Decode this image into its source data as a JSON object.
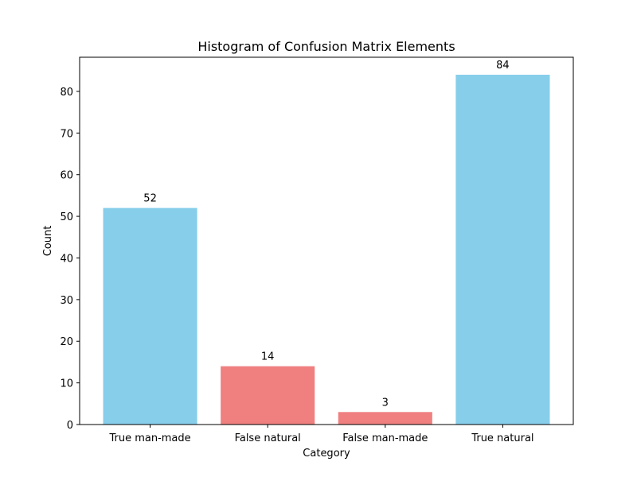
{
  "chart_data": {
    "type": "bar",
    "title": "Histogram of Confusion Matrix Elements",
    "xlabel": "Category",
    "ylabel": "Count",
    "categories": [
      "True man-made",
      "False natural",
      "False man-made",
      "True natural"
    ],
    "values": [
      52,
      14,
      3,
      84
    ],
    "data_labels": [
      "52",
      "14",
      "3",
      "84"
    ],
    "bar_colors": [
      "#87ceeb",
      "#f08080",
      "#f08080",
      "#87ceeb"
    ],
    "ylim": [
      0,
      88.2
    ],
    "yticks": [
      0,
      10,
      20,
      30,
      40,
      50,
      60,
      70,
      80
    ],
    "ytick_labels": [
      "0",
      "10",
      "20",
      "30",
      "40",
      "50",
      "60",
      "70",
      "80"
    ],
    "grid": false,
    "legend": "none"
  }
}
